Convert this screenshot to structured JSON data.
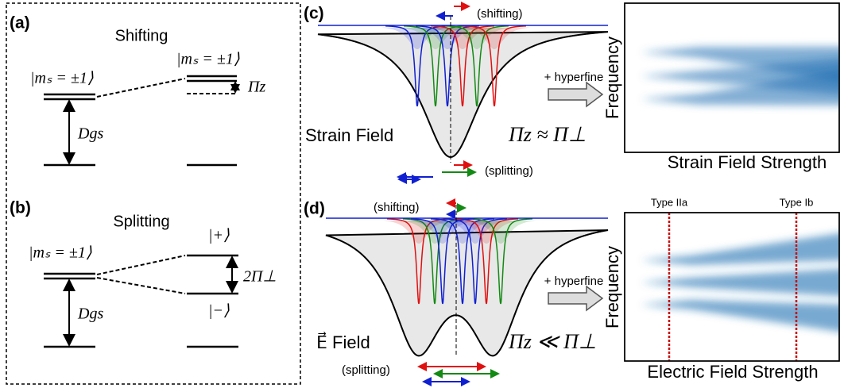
{
  "panel_a": {
    "label": "(a)",
    "title": "Shifting",
    "left_level": "|mₛ = ±1⟩",
    "right_level": "|mₛ = ±1⟩",
    "shift": "Πz",
    "gap": "Dgs"
  },
  "panel_b": {
    "label": "(b)",
    "title": "Splitting",
    "left_level": "|mₛ = ±1⟩",
    "upper_level": "|+⟩",
    "lower_level": "|−⟩",
    "split": "2Π⊥",
    "gap": "Dgs"
  },
  "panel_c": {
    "label": "(c)",
    "shifting": "(shifting)",
    "splitting": "(splitting)",
    "field": "Strain Field",
    "relation": "Πz ≈ Π⊥",
    "arrow": "+ hyperfine",
    "y_axis": "Frequency",
    "x_axis": "Strain Field Strength"
  },
  "panel_d": {
    "label": "(d)",
    "shifting": "(shifting)",
    "splitting": "(splitting)",
    "field": "E⃗ Field",
    "relation": "Πz ≪ Π⊥",
    "arrow": "+ hyperfine",
    "y_axis": "Frequency",
    "x_axis": "Electric Field Strength",
    "markers": [
      "Type IIa",
      "Type Ib"
    ]
  }
}
